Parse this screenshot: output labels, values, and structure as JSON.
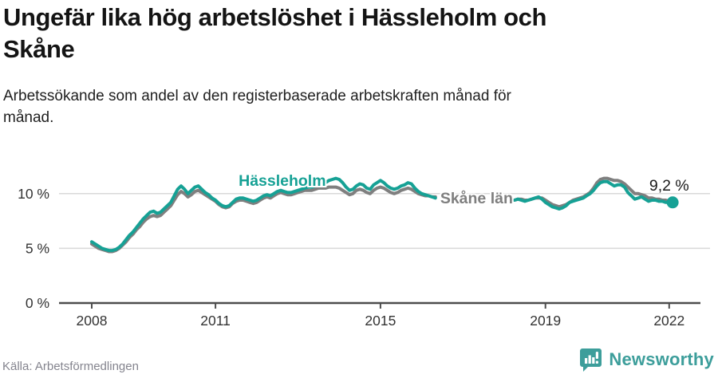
{
  "page": {
    "source": "Källa: Arbetsförmedlingen",
    "brand": {
      "name": "Newsworthy",
      "color": "#3d9e9b",
      "icon": "bar-chart-speech-bubble"
    }
  },
  "chart_data": {
    "type": "line",
    "title": "Ungefär lika hög arbetslöshet i Hässleholm och Skåne",
    "title_lines": [
      "Ungefär lika hög arbetslöshet i Hässleholm och",
      "Skåne"
    ],
    "subtitle": "Arbetssökande som andel av den registerbaserade arbetskraften månad för månad.",
    "unit": "%",
    "grid": "horizontal",
    "legend_position": "inline-labels",
    "x_axis": {
      "tick_years": [
        2008,
        2011,
        2015,
        2019,
        2022
      ],
      "tick_labels": [
        "2008",
        "2011",
        "2015",
        "2019",
        "2022"
      ],
      "range": [
        2008.0,
        2022.4
      ]
    },
    "y_axis": {
      "tick_values": [
        0,
        5,
        10
      ],
      "tick_labels": [
        "0 %",
        "5 %",
        "10 %"
      ],
      "range": [
        0,
        12.5
      ]
    },
    "annotation": {
      "text": "9,2 %",
      "year": 2022.0,
      "value": 10.7
    },
    "series": [
      {
        "name": "Hässleholm",
        "color": "#16a195",
        "end_dot": true,
        "label": {
          "year": 2012.62,
          "value": 11.15
        },
        "segments": [
          {
            "start_year": 2008.0,
            "step_months": 1,
            "values": [
              5.6,
              5.4,
              5.2,
              5.0,
              4.9,
              4.8,
              4.8,
              4.9,
              5.1,
              5.4,
              5.8,
              6.2,
              6.5,
              6.9,
              7.3,
              7.7,
              8.0,
              8.3,
              8.4,
              8.2,
              8.3,
              8.6,
              8.9,
              9.2,
              9.8,
              10.4,
              10.7,
              10.4,
              10.0,
              10.3,
              10.6,
              10.7,
              10.4,
              10.1,
              9.9,
              9.6,
              9.4,
              9.1,
              8.9,
              8.8,
              8.9,
              9.2,
              9.5,
              9.6,
              9.6,
              9.5,
              9.4,
              9.3,
              9.4,
              9.6,
              9.8,
              9.9,
              9.8,
              10.0,
              10.2,
              10.3,
              10.2,
              10.1,
              10.1,
              10.2,
              10.3,
              10.4,
              10.5,
              10.6,
              10.6,
              10.7,
              10.8,
              10.9,
              11.0,
              11.2,
              11.3,
              11.4,
              11.3,
              11.0,
              10.6,
              10.3,
              10.4,
              10.7,
              10.9,
              10.8,
              10.5,
              10.4,
              10.8,
              11.0,
              11.2,
              11.0,
              10.7,
              10.5,
              10.4,
              10.5,
              10.7,
              10.8,
              11.0,
              10.9,
              10.5,
              10.2,
              10.0,
              9.9,
              9.8,
              9.7,
              9.6
            ]
          },
          {
            "start_year": 2018.25,
            "step_months": 1,
            "values": [
              9.4,
              9.5,
              9.4,
              9.3,
              9.4,
              9.5,
              9.6,
              9.7,
              9.5,
              9.2,
              9.0,
              8.8,
              8.7,
              8.6,
              8.7,
              8.9,
              9.2,
              9.3,
              9.4,
              9.5,
              9.6,
              9.8,
              10.0,
              10.3,
              10.7,
              11.0,
              11.1,
              11.1,
              10.9,
              10.7,
              10.8,
              10.8,
              10.6,
              10.1,
              9.8,
              9.5,
              9.6,
              9.7,
              9.5,
              9.3,
              9.4,
              9.4,
              9.3,
              9.3,
              9.2,
              9.2,
              9.2
            ]
          }
        ]
      },
      {
        "name": "Skåne län",
        "color": "#7f7f7f",
        "end_dot": false,
        "label": {
          "year": 2017.33,
          "value": 9.55
        },
        "segments": [
          {
            "start_year": 2008.0,
            "step_months": 1,
            "values": [
              5.4,
              5.2,
              5.0,
              4.9,
              4.8,
              4.7,
              4.7,
              4.8,
              5.0,
              5.3,
              5.6,
              6.0,
              6.3,
              6.7,
              7.0,
              7.4,
              7.7,
              7.9,
              8.0,
              7.9,
              8.0,
              8.3,
              8.6,
              8.9,
              9.4,
              9.9,
              10.2,
              10.0,
              9.7,
              9.9,
              10.2,
              10.3,
              10.1,
              9.9,
              9.7,
              9.5,
              9.3,
              9.0,
              8.8,
              8.7,
              8.8,
              9.1,
              9.3,
              9.4,
              9.4,
              9.3,
              9.2,
              9.1,
              9.2,
              9.4,
              9.6,
              9.7,
              9.6,
              9.8,
              10.0,
              10.1,
              10.0,
              9.9,
              9.9,
              10.0,
              10.1,
              10.2,
              10.3,
              10.3,
              10.3,
              10.4,
              10.5,
              10.5,
              10.5,
              10.6,
              10.6,
              10.6,
              10.5,
              10.3,
              10.1,
              9.9,
              10.0,
              10.3,
              10.4,
              10.3,
              10.1,
              10.0,
              10.3,
              10.5,
              10.6,
              10.5,
              10.3,
              10.1,
              10.0,
              10.1,
              10.3,
              10.4,
              10.5,
              10.4,
              10.2,
              10.0,
              9.9,
              9.8,
              9.8,
              9.7,
              9.7
            ]
          },
          {
            "start_year": 2018.25,
            "step_months": 1,
            "values": [
              9.4,
              9.5,
              9.5,
              9.4,
              9.4,
              9.5,
              9.6,
              9.6,
              9.6,
              9.4,
              9.2,
              9.0,
              8.9,
              8.8,
              8.9,
              9.0,
              9.2,
              9.4,
              9.5,
              9.6,
              9.7,
              9.9,
              10.1,
              10.5,
              11.0,
              11.3,
              11.4,
              11.4,
              11.3,
              11.2,
              11.2,
              11.1,
              10.9,
              10.6,
              10.3,
              10.0,
              10.0,
              9.9,
              9.8,
              9.6,
              9.6,
              9.5,
              9.5,
              9.4,
              9.4,
              9.3,
              9.3
            ]
          }
        ]
      }
    ]
  }
}
